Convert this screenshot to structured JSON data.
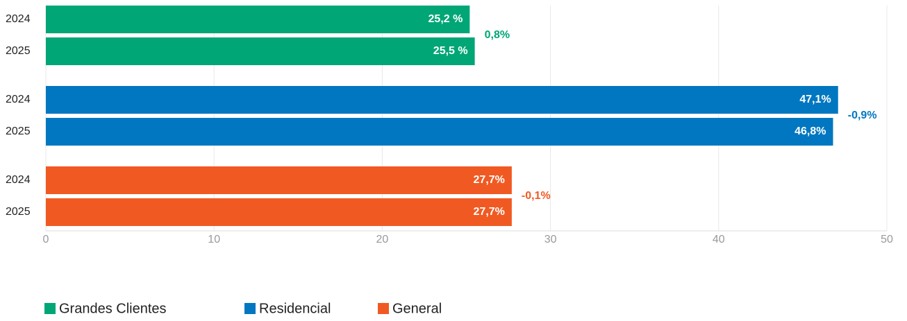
{
  "chart_data": {
    "type": "bar",
    "orientation": "horizontal",
    "categories": [
      "2024",
      "2025"
    ],
    "series": [
      {
        "name": "Grandes Clientes",
        "color": "#00a676",
        "values": [
          25.2,
          25.5
        ],
        "value_labels": [
          "25,2 %",
          "25,5 %"
        ],
        "change": "0,8%"
      },
      {
        "name": "Residencial",
        "color": "#0077c0",
        "values": [
          47.1,
          46.8
        ],
        "value_labels": [
          "47,1%",
          "46,8%"
        ],
        "change": "-0,9%"
      },
      {
        "name": "General",
        "color": "#f05a22",
        "values": [
          27.7,
          27.7
        ],
        "value_labels": [
          "27,7%",
          "27,7%"
        ],
        "change": "-0,1%"
      }
    ],
    "xlim": [
      0,
      50
    ],
    "xticks": [
      0,
      10,
      20,
      30,
      40,
      50
    ],
    "grid": true
  }
}
